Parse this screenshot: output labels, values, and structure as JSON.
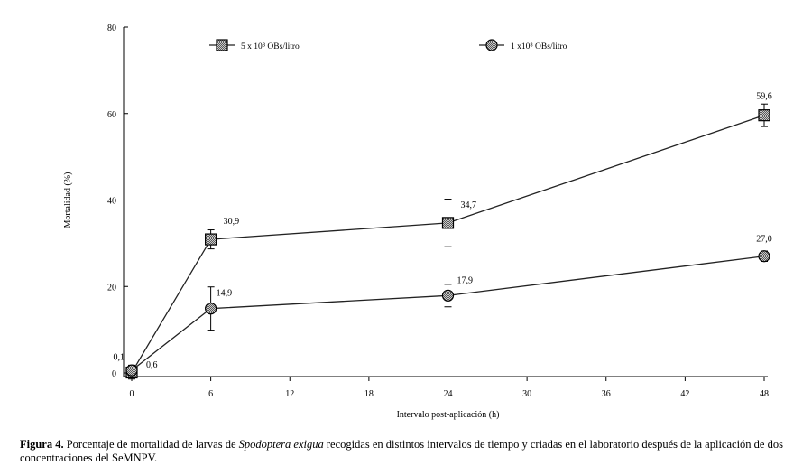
{
  "chart_data": {
    "type": "line",
    "title": "",
    "xlabel": "Intervalo post-aplicación (h)",
    "ylabel": "Mortalidad (%)",
    "xlim": [
      0,
      48
    ],
    "ylim": [
      0,
      80
    ],
    "x_ticks": [
      0,
      6,
      12,
      18,
      24,
      30,
      36,
      42,
      48
    ],
    "y_ticks": [
      0,
      20,
      40,
      60,
      80
    ],
    "grid": false,
    "legend_position": "top",
    "series": [
      {
        "name": "5 x 10⁸ OBs/litro",
        "marker": "square",
        "x": [
          0,
          6,
          24,
          48
        ],
        "y": [
          0.1,
          30.9,
          34.7,
          59.6
        ],
        "error": [
          1.5,
          2.2,
          5.5,
          2.6
        ],
        "labels": [
          "0,1",
          "30,9",
          "34,7",
          "59,6"
        ]
      },
      {
        "name": "1 x10⁸ OBs/litro",
        "marker": "circle",
        "x": [
          0,
          6,
          24,
          48
        ],
        "y": [
          0.6,
          14.9,
          17.9,
          27.0
        ],
        "error": [
          1.2,
          5.0,
          2.6,
          1.2
        ],
        "labels": [
          "0,6",
          "14,9",
          "17,9",
          "27,0"
        ]
      }
    ]
  },
  "caption": {
    "figure_label": "Figura 4.",
    "text_before": " Porcentaje de mortalidad de larvas de ",
    "species": "Spodoptera exigua",
    "text_after": " recogidas en distintos intervalos de tiempo y criadas en el laboratorio después de la aplicación de dos concentraciones del SeMNPV."
  },
  "colors": {
    "axis": "#000000",
    "line": "#222222",
    "marker_fill": "#9a9a9a"
  }
}
